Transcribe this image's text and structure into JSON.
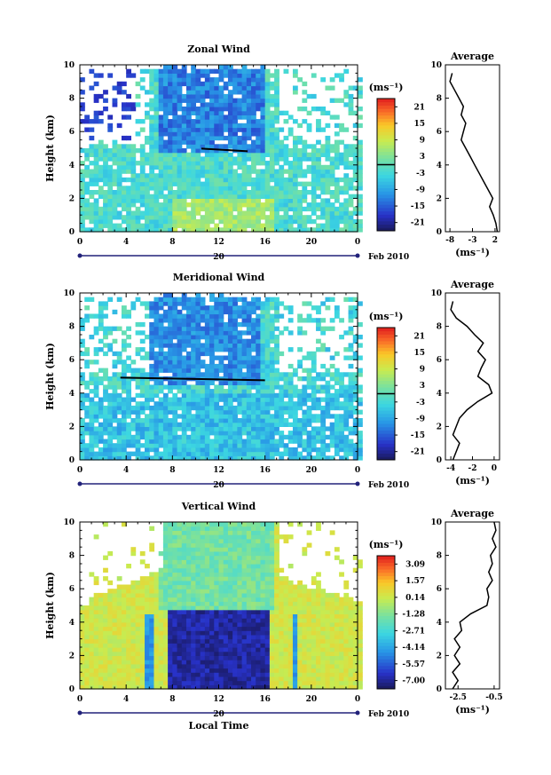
{
  "chart_data": [
    {
      "type": "heatmap",
      "title": "Zonal Wind",
      "ylabel": "Height (km)",
      "xlabel": "",
      "x_ticks": [
        "0",
        "4",
        "8",
        "12",
        "16",
        "20",
        "0"
      ],
      "y_ticks": [
        "0",
        "2",
        "4",
        "6",
        "8",
        "10"
      ],
      "xlim": [
        0,
        24
      ],
      "ylim": [
        0,
        10
      ],
      "date_label": "20",
      "month_label": "Feb 2010",
      "colorbar": {
        "unit": "(ms⁻¹)",
        "ticks": [
          "21",
          "15",
          "9",
          "3",
          "-3",
          "-9",
          "-15",
          "-21"
        ],
        "range": [
          -24,
          24
        ],
        "zero_line": 0
      },
      "average": {
        "title": "Average",
        "xlabel": "(ms⁻¹)",
        "x_ticks": [
          "-8",
          "-3",
          "2"
        ],
        "xlim": [
          -9,
          3
        ],
        "y": [
          0,
          0.5,
          1,
          1.5,
          2,
          2.5,
          3,
          3.5,
          4,
          4.5,
          5,
          5.5,
          6,
          6.5,
          7,
          7.5,
          8,
          8.5,
          9,
          9.5
        ],
        "x": [
          2.5,
          2.2,
          1.6,
          0.8,
          1.5,
          0.5,
          -0.5,
          -1.5,
          -2.5,
          -3.5,
          -4.5,
          -5.5,
          -5.0,
          -4.5,
          -5.5,
          -5.0,
          -6.0,
          -7.0,
          -8.0,
          -7.5
        ]
      },
      "features": {
        "high_wind_band_km": [
          4.8,
          9.5
        ],
        "high_wind_time_h": [
          7,
          16
        ],
        "horizontal_line": {
          "t": [
            10.5,
            14.5
          ],
          "h": 4.9
        }
      }
    },
    {
      "type": "heatmap",
      "title": "Meridional Wind",
      "ylabel": "Height (km)",
      "xlabel": "",
      "x_ticks": [
        "0",
        "4",
        "8",
        "12",
        "16",
        "20",
        "0"
      ],
      "y_ticks": [
        "0",
        "2",
        "4",
        "6",
        "8",
        "10"
      ],
      "xlim": [
        0,
        24
      ],
      "ylim": [
        0,
        10
      ],
      "date_label": "20",
      "month_label": "Feb 2010",
      "colorbar": {
        "unit": "(ms⁻¹)",
        "ticks": [
          "21",
          "15",
          "9",
          "3",
          "-3",
          "-9",
          "-15",
          "-21"
        ],
        "range": [
          -24,
          24
        ],
        "zero_line": 0
      },
      "average": {
        "title": "Average",
        "xlabel": "(ms⁻¹)",
        "x_ticks": [
          "-4",
          "-2",
          "0"
        ],
        "xlim": [
          -4.5,
          0.5
        ],
        "y": [
          0,
          0.5,
          1,
          1.5,
          2,
          2.5,
          3,
          3.5,
          4,
          4.5,
          5,
          5.5,
          6,
          6.5,
          7,
          7.5,
          8,
          8.5,
          9,
          9.5
        ],
        "x": [
          -3.8,
          -3.5,
          -3.2,
          -3.8,
          -3.5,
          -3.2,
          -2.5,
          -1.5,
          -0.2,
          -0.5,
          -1.5,
          -1.2,
          -0.8,
          -1.5,
          -1.0,
          -1.8,
          -2.5,
          -3.5,
          -4.0,
          -3.8
        ]
      },
      "features": {
        "high_wind_band_km": [
          4.5,
          9.5
        ],
        "high_wind_time_h": [
          6,
          15.5
        ],
        "horizontal_line": {
          "t": [
            3.5,
            16
          ],
          "h": 4.85
        }
      }
    },
    {
      "type": "heatmap",
      "title": "Vertical Wind",
      "ylabel": "Height (km)",
      "xlabel": "Local Time",
      "x_ticks": [
        "0",
        "4",
        "8",
        "12",
        "16",
        "20",
        "0"
      ],
      "y_ticks": [
        "0",
        "2",
        "4",
        "6",
        "8",
        "10"
      ],
      "xlim": [
        0,
        24
      ],
      "ylim": [
        0,
        10
      ],
      "date_label": "20",
      "month_label": "Feb 2010",
      "colorbar": {
        "unit": "(ms⁻¹)",
        "ticks": [
          "3.09",
          "1.57",
          "0.14",
          "-1.28",
          "-2.71",
          "-4.14",
          "-5.57",
          "-7.00"
        ],
        "range": [
          -7.7,
          3.8
        ],
        "zero_line": null
      },
      "average": {
        "title": "Average",
        "xlabel": "(ms⁻¹)",
        "x_ticks": [
          "-2.5",
          "-0.5"
        ],
        "xlim": [
          -3.2,
          -0.2
        ],
        "y": [
          0,
          0.5,
          1,
          1.5,
          2,
          2.5,
          3,
          3.5,
          4,
          4.5,
          5,
          5.5,
          6,
          6.5,
          7,
          7.5,
          8,
          8.5,
          9,
          9.5,
          10
        ],
        "x": [
          -2.8,
          -2.5,
          -2.8,
          -2.4,
          -2.7,
          -2.4,
          -2.7,
          -2.3,
          -2.4,
          -1.8,
          -0.9,
          -0.8,
          -0.9,
          -0.6,
          -0.8,
          -0.6,
          -0.7,
          -0.4,
          -0.6,
          -0.4,
          -0.5
        ]
      },
      "features": {
        "downdraft_band_km": [
          0,
          4.7
        ],
        "downdraft_time_h": [
          7.8,
          16.5
        ]
      }
    }
  ]
}
